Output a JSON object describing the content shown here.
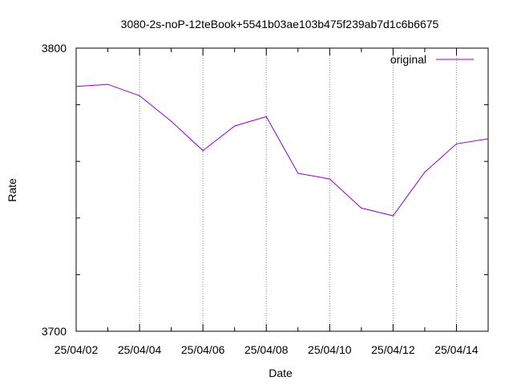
{
  "chart_data": {
    "type": "line",
    "title": "3080-2s-noP-12teBook+5541b03ae103b475f239ab7d1c6b6675",
    "xlabel": "Date",
    "ylabel": "Rate",
    "x_tick_labels": [
      "25/04/02",
      "25/04/04",
      "25/04/06",
      "25/04/08",
      "25/04/10",
      "25/04/12",
      "25/04/14"
    ],
    "y_tick_labels": [
      "3800",
      "3700"
    ],
    "xlim": [
      "2025-04-02",
      "2025-04-15"
    ],
    "ylim": [
      3700,
      3800
    ],
    "grid": "vertical",
    "legend_position": "top-right",
    "series": [
      {
        "name": "original",
        "color": "#9400d3",
        "x": [
          "2025-04-02",
          "2025-04-03",
          "2025-04-04",
          "2025-04-05",
          "2025-04-06",
          "2025-04-07",
          "2025-04-08",
          "2025-04-09",
          "2025-04-10",
          "2025-04-11",
          "2025-04-12",
          "2025-04-13",
          "2025-04-14",
          "2025-04-15"
        ],
        "values": [
          3786.5,
          3787.2,
          3783.2,
          3774.2,
          3763.8,
          3772.5,
          3775.8,
          3755.8,
          3753.8,
          3743.5,
          3740.8,
          3756.2,
          3766.2,
          3768.0
        ]
      }
    ]
  }
}
